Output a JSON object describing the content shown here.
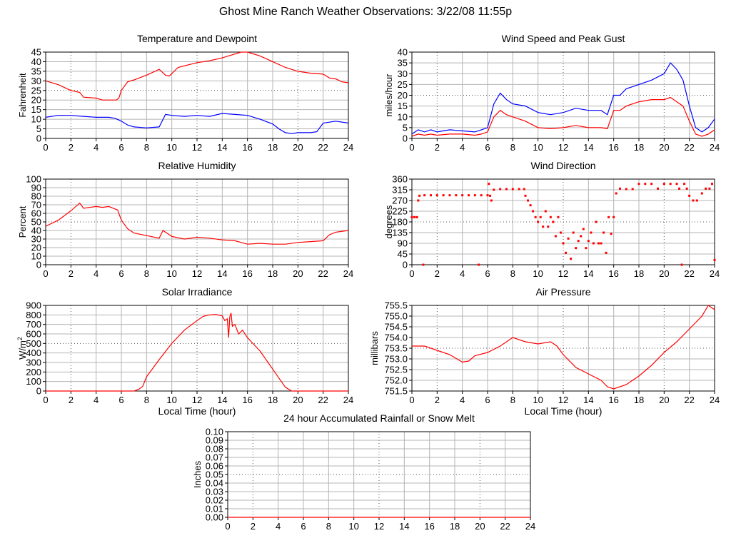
{
  "page_title": "Ghost Mine Ranch Weather Observations: 3/22/08 11:55p",
  "chart_data": [
    {
      "id": "temp",
      "type": "line",
      "title": "Temperature and Dewpoint",
      "ylabel": "Fahrenheit",
      "xlabel": "",
      "xlim": [
        0,
        24
      ],
      "ylim": [
        0,
        45
      ],
      "xticks": [
        0,
        2,
        4,
        6,
        8,
        10,
        12,
        14,
        16,
        18,
        20,
        22,
        24
      ],
      "yticks": [
        0,
        5,
        10,
        15,
        20,
        25,
        30,
        35,
        40,
        45
      ],
      "ytick_labels": [
        "0",
        "5",
        "10",
        "15",
        "20",
        "25",
        "30",
        "35",
        "40",
        "45"
      ],
      "grid": true,
      "series": [
        {
          "color": "#ff0000",
          "x": [
            0,
            1,
            2,
            2.7,
            3,
            4,
            4.5,
            5,
            5.6,
            5.8,
            6,
            6.5,
            7,
            8,
            9,
            9.5,
            9.8,
            10.5,
            12,
            13,
            14,
            15,
            15.5,
            16,
            17,
            18,
            19,
            20,
            21,
            22,
            22.5,
            23,
            23.5,
            24
          ],
          "y": [
            30,
            28,
            25,
            24,
            21.5,
            21,
            20,
            20,
            20,
            21,
            25,
            29.5,
            30.5,
            33,
            36,
            33,
            32.5,
            37,
            39.5,
            40.5,
            42,
            44,
            45,
            45,
            43,
            40,
            37,
            35,
            34,
            33.5,
            31.5,
            31,
            29.5,
            29
          ]
        },
        {
          "color": "#0000ff",
          "x": [
            0,
            1,
            2,
            3,
            4,
            5,
            5.5,
            6,
            6.5,
            7,
            8,
            9,
            9.5,
            10,
            11,
            12,
            13,
            14,
            15,
            16,
            17,
            18,
            18.5,
            19,
            19.5,
            20,
            21,
            21.5,
            22,
            23,
            24
          ],
          "y": [
            11,
            12,
            12,
            11.5,
            11,
            11,
            10.5,
            9,
            7,
            6,
            5.5,
            6,
            12.5,
            12,
            11.5,
            12,
            11.5,
            13,
            12.5,
            12,
            10,
            7.5,
            5,
            3,
            2.5,
            3,
            3,
            3.5,
            8,
            9,
            8
          ]
        }
      ]
    },
    {
      "id": "wind",
      "type": "line",
      "title": "Wind Speed and Peak Gust",
      "ylabel": "miles/hour",
      "xlabel": "",
      "xlim": [
        0,
        24
      ],
      "ylim": [
        0,
        40
      ],
      "xticks": [
        0,
        2,
        4,
        6,
        8,
        10,
        12,
        14,
        16,
        18,
        20,
        22,
        24
      ],
      "yticks": [
        0,
        5,
        10,
        15,
        20,
        25,
        30,
        35,
        40
      ],
      "ytick_labels": [
        "0",
        "5",
        "10",
        "15",
        "20",
        "25",
        "30",
        "35",
        "40"
      ],
      "grid": true,
      "series": [
        {
          "color": "#0000ff",
          "x": [
            0,
            0.5,
            1,
            1.5,
            2,
            3,
            4,
            5,
            5.5,
            6,
            6.5,
            7,
            7.5,
            8,
            9,
            10,
            11,
            12,
            13,
            14,
            15,
            15.5,
            16,
            16.5,
            17,
            18,
            19,
            20,
            20.5,
            21,
            21.5,
            22,
            22.5,
            23,
            23.5,
            24
          ],
          "y": [
            2,
            4,
            3,
            4,
            3,
            4,
            3.5,
            3,
            4,
            5,
            16,
            21,
            18,
            16,
            15,
            12,
            11,
            12,
            14,
            13,
            13,
            11,
            20,
            20,
            23,
            25,
            27,
            30,
            35,
            32,
            27,
            15,
            5,
            3,
            5,
            9
          ]
        },
        {
          "color": "#ff0000",
          "x": [
            0,
            0.5,
            1,
            1.5,
            2,
            3,
            4,
            5,
            5.5,
            6,
            6.5,
            7,
            7.5,
            8,
            9,
            10,
            11,
            12,
            13,
            14,
            15,
            15.5,
            16,
            16.5,
            17,
            18,
            19,
            20,
            20.5,
            21,
            21.5,
            22,
            22.5,
            23,
            23.5,
            24
          ],
          "y": [
            1,
            2,
            1.5,
            2,
            1.5,
            2,
            2,
            1.5,
            2,
            3,
            10,
            13,
            11,
            10,
            8,
            5,
            4.5,
            5,
            6,
            5,
            5,
            4.5,
            13,
            13,
            15,
            17,
            18,
            18,
            19,
            17,
            15,
            8,
            2,
            1,
            2,
            4
          ]
        }
      ]
    },
    {
      "id": "humidity",
      "type": "line",
      "title": "Relative Humidity",
      "ylabel": "Percent",
      "xlabel": "",
      "xlim": [
        0,
        24
      ],
      "ylim": [
        0,
        100
      ],
      "xticks": [
        0,
        2,
        4,
        6,
        8,
        10,
        12,
        14,
        16,
        18,
        20,
        22,
        24
      ],
      "yticks": [
        0,
        10,
        20,
        30,
        40,
        50,
        60,
        70,
        80,
        90,
        100
      ],
      "ytick_labels": [
        "0",
        "10",
        "20",
        "30",
        "40",
        "50",
        "60",
        "70",
        "80",
        "90",
        "100"
      ],
      "grid": true,
      "series": [
        {
          "color": "#ff0000",
          "x": [
            0,
            1,
            2,
            2.7,
            3,
            4,
            4.5,
            5,
            5.7,
            6,
            6.5,
            7,
            8,
            9,
            9.3,
            9.7,
            10,
            11,
            12,
            13,
            14,
            15,
            15.5,
            16,
            17,
            18,
            19,
            20,
            21,
            22,
            22.5,
            23,
            24
          ],
          "y": [
            45,
            52,
            63,
            72,
            66,
            68,
            67,
            68,
            64,
            52,
            42,
            37,
            34,
            31,
            40,
            36,
            33,
            30,
            32,
            31,
            29,
            28,
            26,
            24,
            25,
            24,
            24,
            26,
            27,
            28,
            35,
            38,
            40
          ]
        }
      ]
    },
    {
      "id": "direction",
      "type": "scatter",
      "title": "Wind Direction",
      "ylabel": "degrees",
      "xlabel": "",
      "xlim": [
        0,
        24
      ],
      "ylim": [
        0,
        360
      ],
      "xticks": [
        0,
        2,
        4,
        6,
        8,
        10,
        12,
        14,
        16,
        18,
        20,
        22,
        24
      ],
      "yticks": [
        0,
        45,
        90,
        135,
        180,
        225,
        270,
        315,
        360
      ],
      "ytick_labels": [
        "0",
        "45",
        "90",
        "135",
        "180",
        "225",
        "270",
        "315",
        "360"
      ],
      "grid": true,
      "series": [
        {
          "color": "#ff0000",
          "x": [
            0,
            0.2,
            0.4,
            0.5,
            0.6,
            1,
            1.5,
            2,
            2.5,
            3,
            3.5,
            4,
            4.5,
            5,
            5.5,
            6,
            6.1,
            6.2,
            6.3,
            6.5,
            7,
            7.5,
            8,
            8.5,
            8.9,
            9,
            9.2,
            9.4,
            9.6,
            9.8,
            10,
            10.2,
            10.4,
            10.6,
            10.8,
            11,
            11.2,
            11.4,
            11.6,
            11.8,
            12,
            12.2,
            12.4,
            12.6,
            12.8,
            13,
            13.2,
            13.4,
            13.6,
            13.8,
            14,
            14.2,
            14.4,
            14.6,
            14.8,
            15,
            15.2,
            15.4,
            15.6,
            15.8,
            16,
            16.2,
            16.5,
            17,
            17.5,
            18,
            18.5,
            19,
            19.5,
            20,
            20.5,
            21,
            21.2,
            21.4,
            21.6,
            21.8,
            22,
            22.3,
            22.6,
            23,
            23.3,
            23.6,
            23.8,
            24,
            0.9,
            5.3
          ],
          "y": [
            200,
            200,
            200,
            270,
            290,
            292,
            292,
            292,
            292,
            292,
            292,
            292,
            292,
            292,
            292,
            292,
            340,
            290,
            270,
            315,
            318,
            318,
            318,
            318,
            318,
            290,
            270,
            250,
            225,
            200,
            180,
            200,
            160,
            225,
            160,
            200,
            180,
            120,
            200,
            135,
            90,
            50,
            110,
            25,
            135,
            70,
            100,
            120,
            150,
            70,
            100,
            135,
            90,
            180,
            90,
            90,
            135,
            50,
            200,
            130,
            200,
            300,
            320,
            318,
            318,
            340,
            340,
            340,
            320,
            340,
            340,
            340,
            320,
            0,
            340,
            320,
            290,
            270,
            270,
            300,
            320,
            320,
            340,
            20,
            0,
            0
          ]
        }
      ]
    },
    {
      "id": "solar",
      "type": "line",
      "title": "Solar Irradiance",
      "ylabel": "W/m2",
      "xlabel": "Local Time (hour)",
      "xlim": [
        0,
        24
      ],
      "ylim": [
        0,
        900
      ],
      "xticks": [
        0,
        2,
        4,
        6,
        8,
        10,
        12,
        14,
        16,
        18,
        20,
        22,
        24
      ],
      "yticks": [
        0,
        100,
        200,
        300,
        400,
        500,
        600,
        700,
        800,
        900
      ],
      "ytick_labels": [
        "0",
        "100",
        "200",
        "300",
        "400",
        "500",
        "600",
        "700",
        "800",
        "900"
      ],
      "grid": true,
      "series": [
        {
          "color": "#ff0000",
          "x": [
            0,
            7,
            7.4,
            7.7,
            8,
            9,
            10,
            11,
            12,
            12.5,
            13,
            13.5,
            14,
            14.2,
            14.4,
            14.5,
            14.6,
            14.7,
            14.8,
            15,
            15.3,
            15.6,
            16,
            17,
            18,
            19,
            19.5,
            20,
            24
          ],
          "y": [
            0,
            0,
            20,
            50,
            150,
            330,
            500,
            640,
            740,
            785,
            800,
            805,
            790,
            740,
            760,
            560,
            780,
            820,
            680,
            700,
            600,
            640,
            560,
            420,
            230,
            40,
            0,
            0,
            0
          ]
        }
      ]
    },
    {
      "id": "pressure",
      "type": "line",
      "title": "Air Pressure",
      "ylabel": "millibars",
      "xlabel": "Local Time (hour)",
      "xlim": [
        0,
        24
      ],
      "ylim": [
        751.5,
        755.5
      ],
      "xticks": [
        0,
        2,
        4,
        6,
        8,
        10,
        12,
        14,
        16,
        18,
        20,
        22,
        24
      ],
      "yticks": [
        751.5,
        752,
        752.5,
        753,
        753.5,
        754,
        754.5,
        755,
        755.5
      ],
      "ytick_labels": [
        "751.5",
        "752.0",
        "752.5",
        "753.0",
        "753.5",
        "754.0",
        "754.5",
        "755.0",
        "755.5"
      ],
      "grid": true,
      "series": [
        {
          "color": "#ff0000",
          "x": [
            0,
            1,
            2,
            3,
            4,
            4.5,
            5,
            6,
            7,
            8,
            9,
            10,
            11,
            11.5,
            12,
            13,
            14,
            15,
            15.5,
            16,
            17,
            18,
            19,
            20,
            21,
            22,
            23,
            23.5,
            24
          ],
          "y": [
            753.6,
            753.6,
            753.4,
            753.2,
            752.85,
            752.9,
            753.15,
            753.3,
            753.6,
            754.0,
            753.8,
            753.7,
            753.8,
            753.6,
            753.2,
            752.6,
            752.3,
            752.0,
            751.7,
            751.6,
            751.8,
            752.2,
            752.7,
            753.3,
            753.8,
            754.4,
            755.0,
            755.5,
            755.3
          ]
        }
      ]
    },
    {
      "id": "rain",
      "type": "line",
      "title": "24 hour Accumulated Rainfall or Snow Melt",
      "ylabel": "Inches",
      "xlabel": "",
      "xlim": [
        0,
        24
      ],
      "ylim": [
        0,
        0.1
      ],
      "xticks": [
        0,
        2,
        4,
        6,
        8,
        10,
        12,
        14,
        16,
        18,
        20,
        22,
        24
      ],
      "yticks": [
        0,
        0.01,
        0.02,
        0.03,
        0.04,
        0.05,
        0.06,
        0.07,
        0.08,
        0.09,
        0.1
      ],
      "ytick_labels": [
        "0.00",
        "0.01",
        "0.02",
        "0.03",
        "0.04",
        "0.05",
        "0.06",
        "0.07",
        "0.08",
        "0.09",
        "0.10"
      ],
      "grid": true,
      "series": [
        {
          "color": "#ff0000",
          "x": [
            0,
            24
          ],
          "y": [
            0,
            0
          ]
        }
      ]
    }
  ]
}
